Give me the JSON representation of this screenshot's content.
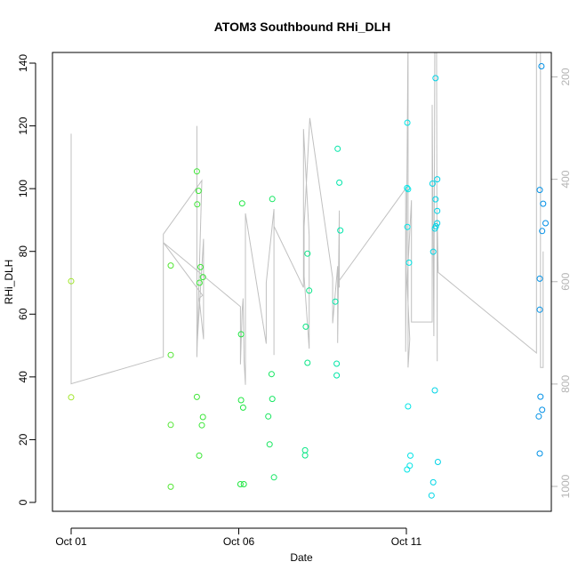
{
  "chart_data": {
    "type": "scatter",
    "title": "ATOM3 Southbound RHi_DLH",
    "xlabel": "Date",
    "ylabel": "RHi_DLH",
    "x_ticks": [
      "Oct 01",
      "Oct 06",
      "Oct 11"
    ],
    "x_tick_days": [
      1,
      6,
      11
    ],
    "xlim": [
      1,
      15.4
    ],
    "ylim": [
      0,
      140
    ],
    "y_ticks": [
      0,
      20,
      40,
      60,
      80,
      100,
      120,
      140
    ],
    "y2_ticks": [
      200,
      400,
      600,
      800,
      1000
    ],
    "y2_reversed": true,
    "y2_range": [
      150,
      1000
    ],
    "colors": {
      "line": "#c0c0c0",
      "axis": "#000000",
      "right_axis": "#b4b4b4"
    },
    "points": [
      {
        "x": 1.0,
        "y": 70.5
      },
      {
        "x": 1.0,
        "y": 33.5
      },
      {
        "x": 3.97,
        "y": 75.5
      },
      {
        "x": 3.97,
        "y": 47
      },
      {
        "x": 3.97,
        "y": 24.7
      },
      {
        "x": 3.97,
        "y": 5
      },
      {
        "x": 4.75,
        "y": 105.5
      },
      {
        "x": 4.8,
        "y": 99.3
      },
      {
        "x": 4.76,
        "y": 95
      },
      {
        "x": 4.86,
        "y": 75
      },
      {
        "x": 4.93,
        "y": 71.8
      },
      {
        "x": 4.83,
        "y": 70
      },
      {
        "x": 4.75,
        "y": 33.6
      },
      {
        "x": 4.93,
        "y": 27.2
      },
      {
        "x": 4.9,
        "y": 24.6
      },
      {
        "x": 4.82,
        "y": 14.9
      },
      {
        "x": 6.1,
        "y": 95.3
      },
      {
        "x": 6.07,
        "y": 53.6
      },
      {
        "x": 6.07,
        "y": 32.6
      },
      {
        "x": 6.13,
        "y": 30.2
      },
      {
        "x": 6.05,
        "y": 5.8
      },
      {
        "x": 6.15,
        "y": 5.8
      },
      {
        "x": 7.0,
        "y": 96.7
      },
      {
        "x": 6.98,
        "y": 40.9
      },
      {
        "x": 7.0,
        "y": 33
      },
      {
        "x": 6.88,
        "y": 27.4
      },
      {
        "x": 6.92,
        "y": 18.5
      },
      {
        "x": 7.05,
        "y": 8
      },
      {
        "x": 8.05,
        "y": 79.3
      },
      {
        "x": 8.1,
        "y": 67.5
      },
      {
        "x": 8.0,
        "y": 56
      },
      {
        "x": 8.05,
        "y": 44.5
      },
      {
        "x": 7.98,
        "y": 16.6
      },
      {
        "x": 7.98,
        "y": 15
      },
      {
        "x": 8.95,
        "y": 112.7
      },
      {
        "x": 9.0,
        "y": 101.9
      },
      {
        "x": 9.03,
        "y": 86.7
      },
      {
        "x": 8.88,
        "y": 64
      },
      {
        "x": 8.92,
        "y": 44.2
      },
      {
        "x": 8.92,
        "y": 40.5
      },
      {
        "x": 11.03,
        "y": 121
      },
      {
        "x": 11.02,
        "y": 100.2
      },
      {
        "x": 11.05,
        "y": 99.8
      },
      {
        "x": 11.03,
        "y": 87.8
      },
      {
        "x": 11.08,
        "y": 76.4
      },
      {
        "x": 11.05,
        "y": 30.6
      },
      {
        "x": 11.12,
        "y": 14.9
      },
      {
        "x": 11.1,
        "y": 11.7
      },
      {
        "x": 11.02,
        "y": 10.5
      },
      {
        "x": 11.87,
        "y": 135.2
      },
      {
        "x": 11.92,
        "y": 103
      },
      {
        "x": 11.78,
        "y": 101.6
      },
      {
        "x": 11.87,
        "y": 96.6
      },
      {
        "x": 11.92,
        "y": 92.9
      },
      {
        "x": 11.92,
        "y": 89
      },
      {
        "x": 11.85,
        "y": 87.3
      },
      {
        "x": 11.88,
        "y": 88
      },
      {
        "x": 11.8,
        "y": 79.9
      },
      {
        "x": 11.85,
        "y": 35.7
      },
      {
        "x": 11.94,
        "y": 12.9
      },
      {
        "x": 11.8,
        "y": 6.4
      },
      {
        "x": 11.75,
        "y": 2.2
      },
      {
        "x": 15.03,
        "y": 139
      },
      {
        "x": 14.98,
        "y": 99.6
      },
      {
        "x": 15.08,
        "y": 95.2
      },
      {
        "x": 15.15,
        "y": 89
      },
      {
        "x": 15.05,
        "y": 86.5
      },
      {
        "x": 14.98,
        "y": 71.3
      },
      {
        "x": 14.98,
        "y": 61.4
      },
      {
        "x": 15.0,
        "y": 33.7
      },
      {
        "x": 15.05,
        "y": 29.5
      },
      {
        "x": 14.95,
        "y": 27.4
      },
      {
        "x": 14.98,
        "y": 15.6
      }
    ],
    "line": {
      "name": "",
      "points": [
        {
          "x": 1.0,
          "y": 117.5
        },
        {
          "x": 1.0,
          "y": 37.8
        },
        {
          "x": 3.75,
          "y": 46.4
        },
        {
          "x": 3.75,
          "y": 85.5
        },
        {
          "x": 4.9,
          "y": 102.6
        },
        {
          "x": 4.75,
          "y": 46.3
        },
        {
          "x": 4.75,
          "y": 120
        },
        {
          "x": 4.75,
          "y": 49
        },
        {
          "x": 4.95,
          "y": 84
        },
        {
          "x": 4.95,
          "y": 52
        },
        {
          "x": 4.82,
          "y": 65
        },
        {
          "x": 4.92,
          "y": 66
        },
        {
          "x": 3.75,
          "y": 82.8
        },
        {
          "x": 6.05,
          "y": 62.4
        },
        {
          "x": 6.05,
          "y": 44
        },
        {
          "x": 6.1,
          "y": 61
        },
        {
          "x": 6.13,
          "y": 65
        },
        {
          "x": 6.16,
          "y": 45
        },
        {
          "x": 6.2,
          "y": 37.5
        },
        {
          "x": 6.2,
          "y": 92.1
        },
        {
          "x": 6.82,
          "y": 50.6
        },
        {
          "x": 6.82,
          "y": 70
        },
        {
          "x": 7.05,
          "y": 93.5
        },
        {
          "x": 7.05,
          "y": 47
        },
        {
          "x": 7.05,
          "y": 88
        },
        {
          "x": 7.93,
          "y": 68.5
        },
        {
          "x": 7.93,
          "y": 119
        },
        {
          "x": 8.1,
          "y": 85
        },
        {
          "x": 8.1,
          "y": 49
        },
        {
          "x": 7.95,
          "y": 72
        },
        {
          "x": 7.95,
          "y": 88
        },
        {
          "x": 8.12,
          "y": 122.5
        },
        {
          "x": 8.8,
          "y": 71.5
        },
        {
          "x": 8.8,
          "y": 57.1
        },
        {
          "x": 8.95,
          "y": 75.3
        },
        {
          "x": 8.95,
          "y": 50.8
        },
        {
          "x": 9.0,
          "y": 93
        },
        {
          "x": 9.0,
          "y": 68.5
        },
        {
          "x": 8.95,
          "y": 70
        },
        {
          "x": 10.98,
          "y": 100
        },
        {
          "x": 10.98,
          "y": 48
        },
        {
          "x": 11.05,
          "y": 150
        },
        {
          "x": 11.05,
          "y": 43
        },
        {
          "x": 11.1,
          "y": 52
        },
        {
          "x": 11.02,
          "y": 70
        },
        {
          "x": 11.15,
          "y": 96.3
        },
        {
          "x": 11.15,
          "y": 57.5
        },
        {
          "x": 11.77,
          "y": 57.5
        },
        {
          "x": 11.77,
          "y": 126.7
        },
        {
          "x": 11.82,
          "y": 53
        },
        {
          "x": 11.85,
          "y": 150
        },
        {
          "x": 11.9,
          "y": 150
        },
        {
          "x": 11.92,
          "y": 45
        },
        {
          "x": 11.92,
          "y": 90
        },
        {
          "x": 11.95,
          "y": 73.3
        },
        {
          "x": 14.88,
          "y": 47.6
        },
        {
          "x": 14.88,
          "y": 150
        },
        {
          "x": 15.0,
          "y": 150
        },
        {
          "x": 15.0,
          "y": 43
        },
        {
          "x": 15.08,
          "y": 43
        },
        {
          "x": 15.08,
          "y": 80
        }
      ]
    }
  }
}
